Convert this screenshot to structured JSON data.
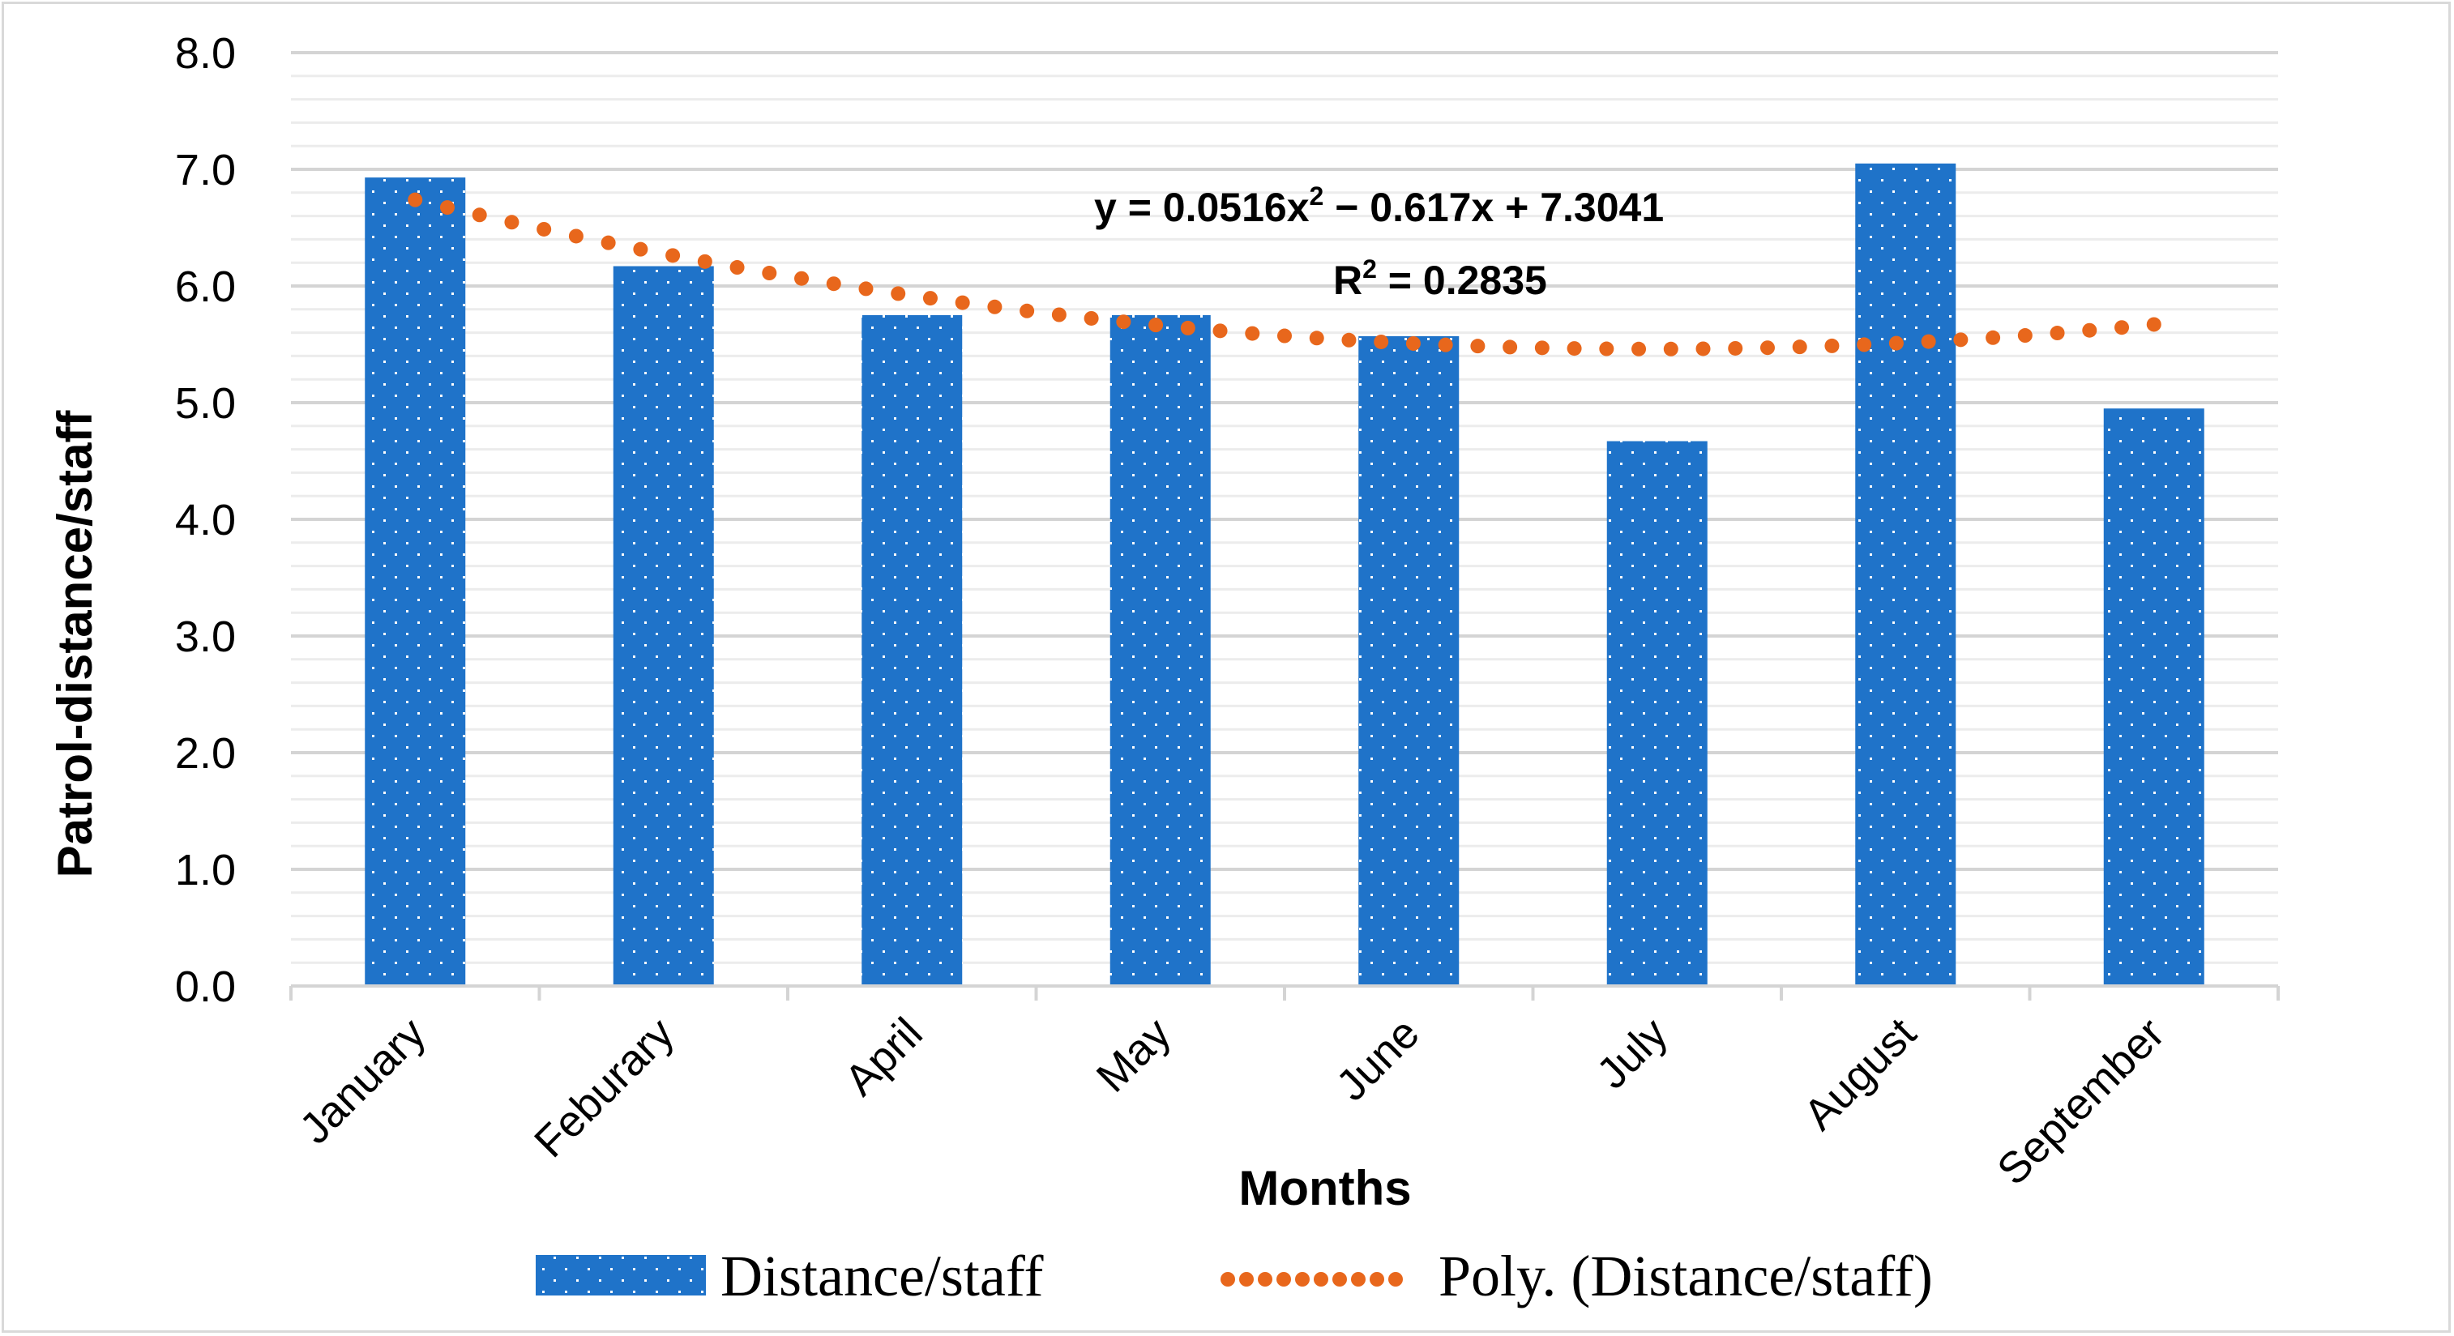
{
  "chart_data": {
    "type": "bar",
    "title": "",
    "xlabel": "Months",
    "ylabel": "Patrol-distance/staff",
    "ylim": [
      0,
      8
    ],
    "yticks": [
      "0.0",
      "1.0",
      "2.0",
      "3.0",
      "4.0",
      "5.0",
      "6.0",
      "7.0",
      "8.0"
    ],
    "categories": [
      "January",
      "Feburary",
      "April",
      "May",
      "June",
      "July",
      "August",
      "September"
    ],
    "series": [
      {
        "name": "Distance/staff",
        "values": [
          6.93,
          6.17,
          5.75,
          5.75,
          5.57,
          4.67,
          7.05,
          4.95
        ],
        "color": "#1f73c9"
      }
    ],
    "trendline": {
      "name": "Poly. (Distance/staff)",
      "type": "polynomial",
      "order": 2,
      "coefficients": {
        "a": 0.0516,
        "b": -0.617,
        "c": 7.3041
      },
      "equation_prefix": "y = 0.0516x",
      "equation_suffix": " − 0.617x + 7.3041",
      "r2_prefix": "R",
      "r2_suffix": " = 0.2835",
      "superscript": "2",
      "color": "#e8671c"
    },
    "legend": {
      "position": "bottom"
    },
    "grid": true
  }
}
